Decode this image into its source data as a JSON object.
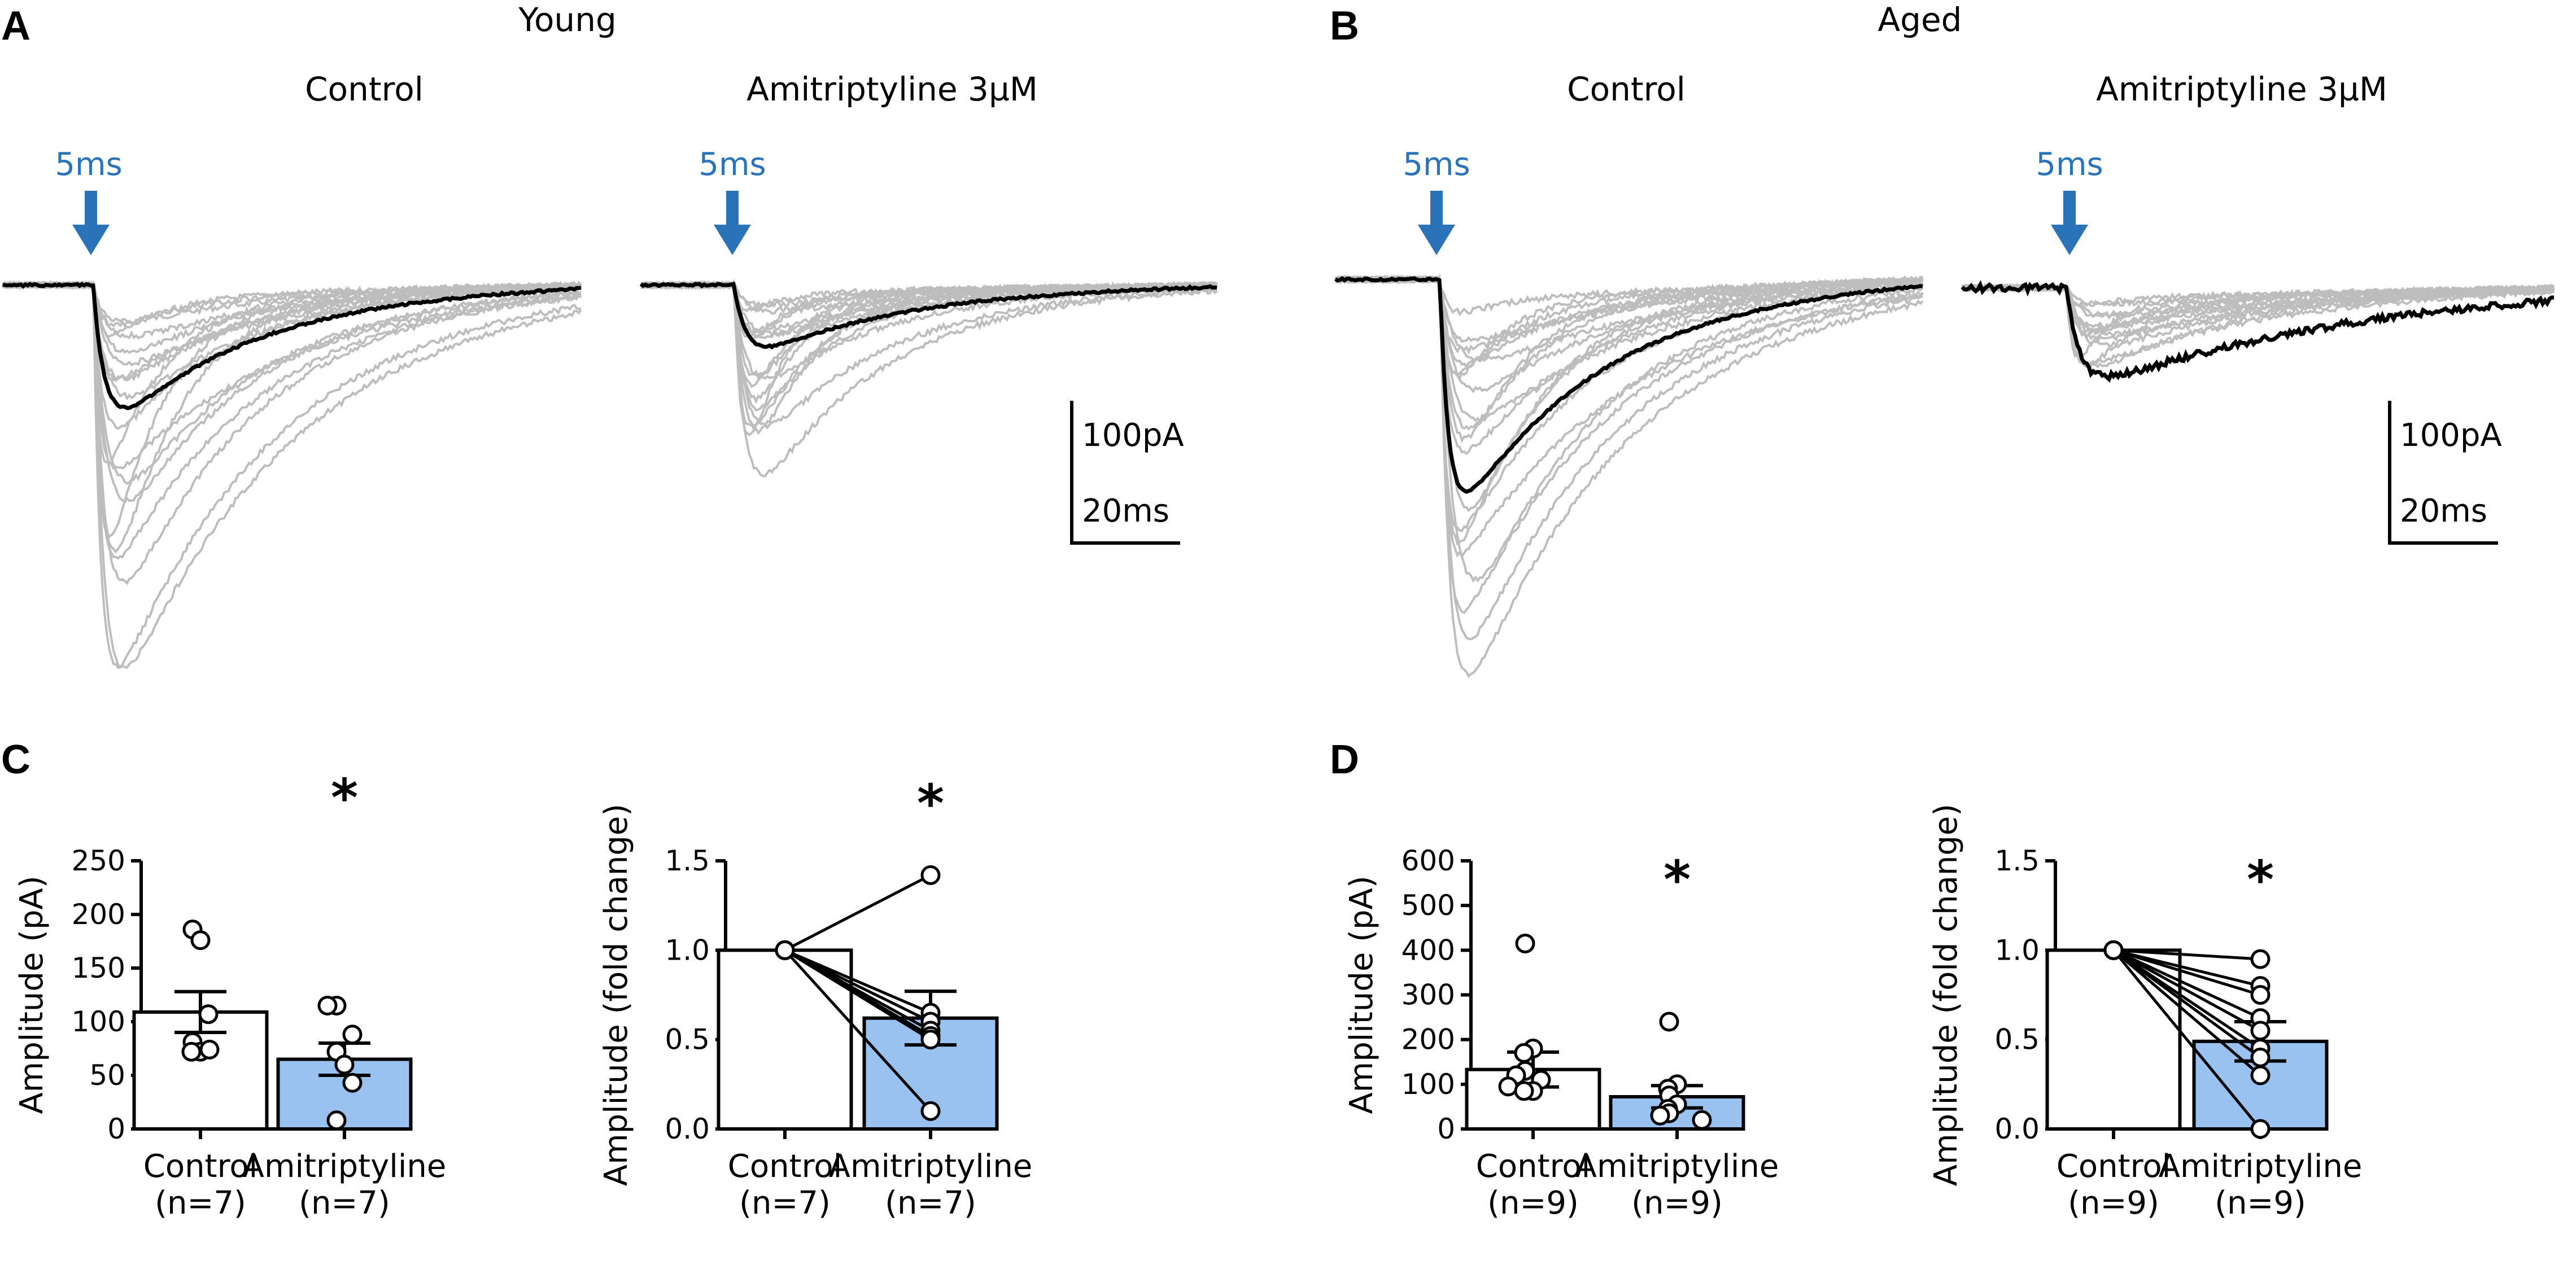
{
  "colors": {
    "arrow": "#2b73b8",
    "trace_gray": "#bdbdbd",
    "trace_mean": "#000000",
    "bar_fill": "#99c2f0",
    "bar_fill_control": "#ffffff"
  },
  "panels": {
    "A": {
      "label": "A",
      "group": "Young",
      "control": "Control",
      "drug": "Amitriptyline  3µM"
    },
    "B": {
      "label": "B",
      "group": "Aged",
      "control": "Control",
      "drug": "Amitriptyline  3µM"
    },
    "C": {
      "label": "C"
    },
    "D": {
      "label": "D"
    }
  },
  "stimulus": {
    "label": "5ms"
  },
  "scale_bar": {
    "current": "100pA",
    "time": "20ms"
  },
  "chart_data": [
    {
      "type": "bar",
      "panel": "C",
      "subplot": "left",
      "ylabel": "Amplitude (pA)",
      "ylim": [
        0,
        250
      ],
      "yticks": [
        0,
        50,
        100,
        150,
        200,
        250
      ],
      "categories": [
        {
          "name": "Control",
          "n": "(n=7)"
        },
        {
          "name": "Amitriptyline",
          "n": "(n=7)"
        }
      ],
      "values": [
        109,
        65
      ],
      "sem": [
        19,
        15
      ],
      "points": [
        [
          186,
          176,
          107,
          81,
          72,
          72,
          74
        ],
        [
          115,
          115,
          88,
          72,
          60,
          43,
          8
        ]
      ],
      "paired": false,
      "significance": {
        "category": 1,
        "symbol": "*"
      }
    },
    {
      "type": "bar",
      "panel": "C",
      "subplot": "right",
      "ylabel": "Amplitude (fold change)",
      "ylim": [
        0,
        1.5
      ],
      "yticks": [
        "0.0",
        "0.5",
        "1.0",
        "1.5"
      ],
      "categories": [
        {
          "name": "Control",
          "n": "(n=7)"
        },
        {
          "name": "Amitriptyline",
          "n": "(n=7)"
        }
      ],
      "values": [
        1.0,
        0.62
      ],
      "sem": [
        0,
        0.15
      ],
      "points": [
        [
          1,
          1,
          1,
          1,
          1,
          1,
          1
        ],
        [
          1.42,
          0.65,
          0.6,
          0.55,
          0.52,
          0.5,
          0.1
        ]
      ],
      "paired": true,
      "significance": {
        "category": 1,
        "symbol": "*"
      }
    },
    {
      "type": "bar",
      "panel": "D",
      "subplot": "left",
      "ylabel": "Amplitude (pA)",
      "ylim": [
        0,
        600
      ],
      "yticks": [
        0,
        100,
        200,
        300,
        400,
        500,
        600
      ],
      "categories": [
        {
          "name": "Control",
          "n": "(n=9)"
        },
        {
          "name": "Amitriptyline",
          "n": "(n=9)"
        }
      ],
      "values": [
        133,
        72
      ],
      "sem": [
        39,
        25
      ],
      "points": [
        [
          415,
          180,
          170,
          130,
          120,
          110,
          95,
          85,
          85
        ],
        [
          240,
          100,
          90,
          75,
          55,
          45,
          35,
          30,
          20
        ]
      ],
      "paired": false,
      "significance": {
        "category": 1,
        "symbol": "*"
      }
    },
    {
      "type": "bar",
      "panel": "D",
      "subplot": "right",
      "ylabel": "Amplitude (fold change)",
      "ylim": [
        0,
        1.5
      ],
      "yticks": [
        "0.0",
        "0.5",
        "1.0",
        "1.5"
      ],
      "categories": [
        {
          "name": "Control",
          "n": "(n=9)"
        },
        {
          "name": "Amitriptyline",
          "n": "(n=9)"
        }
      ],
      "values": [
        1.0,
        0.49
      ],
      "sem": [
        0,
        0.11
      ],
      "points": [
        [
          1,
          1,
          1,
          1,
          1,
          1,
          1,
          1,
          1
        ],
        [
          0.95,
          0.8,
          0.75,
          0.62,
          0.55,
          0.45,
          0.4,
          0.3,
          0.0
        ]
      ],
      "paired": true,
      "significance": {
        "category": 1,
        "symbol": "*"
      }
    }
  ]
}
